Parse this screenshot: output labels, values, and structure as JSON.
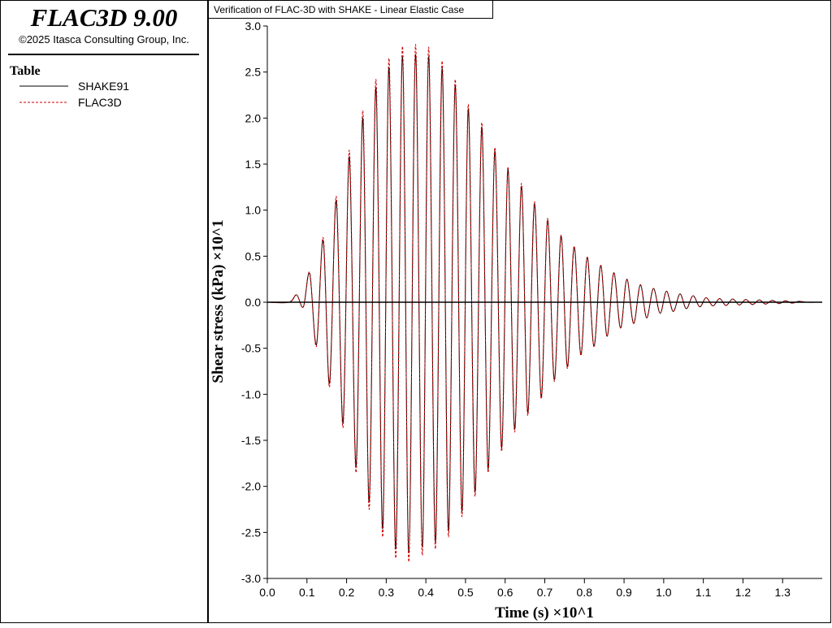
{
  "app": {
    "title": "FLAC3D 9.00",
    "copyright": "©2025 Itasca Consulting Group, Inc.",
    "legend_title": "Table"
  },
  "chart_data": {
    "type": "line",
    "title": "Verification of FLAC-3D with SHAKE - Linear Elastic Case",
    "x_label": "Time (s) ×10^1",
    "y_label": "Shear stress (kPa) ×10^1",
    "x": [
      0,
      0.055,
      0.074,
      0.091,
      0.107,
      0.124,
      0.141,
      0.157,
      0.174,
      0.191,
      0.207,
      0.224,
      0.241,
      0.257,
      0.274,
      0.291,
      0.307,
      0.324,
      0.341,
      0.357,
      0.374,
      0.391,
      0.407,
      0.424,
      0.441,
      0.457,
      0.474,
      0.491,
      0.507,
      0.524,
      0.541,
      0.557,
      0.574,
      0.591,
      0.607,
      0.624,
      0.641,
      0.657,
      0.674,
      0.691,
      0.707,
      0.724,
      0.741,
      0.757,
      0.774,
      0.791,
      0.807,
      0.824,
      0.841,
      0.857,
      0.874,
      0.891,
      0.907,
      0.924,
      0.941,
      0.957,
      0.974,
      0.991,
      1.007,
      1.024,
      1.041,
      1.057,
      1.074,
      1.091,
      1.107,
      1.124,
      1.141,
      1.157,
      1.174,
      1.191,
      1.207,
      1.224,
      1.241,
      1.257,
      1.274,
      1.291,
      1.307,
      1.324,
      1.341,
      1.36,
      1.39
    ],
    "series": [
      {
        "name": "SHAKE91",
        "color": "#000000",
        "style": "solid",
        "values": [
          0,
          0,
          0.08,
          -0.05,
          0.31,
          -0.46,
          0.67,
          -0.88,
          1.1,
          -1.31,
          1.58,
          -1.78,
          2.0,
          -2.17,
          2.33,
          -2.46,
          2.55,
          -2.68,
          2.67,
          -2.72,
          2.69,
          -2.66,
          2.67,
          -2.6,
          2.54,
          -2.48,
          2.36,
          -2.27,
          2.1,
          -2.06,
          1.9,
          -1.81,
          1.64,
          -1.58,
          1.44,
          -1.38,
          1.26,
          -1.2,
          1.07,
          -1.03,
          0.89,
          -0.84,
          0.72,
          -0.7,
          0.6,
          -0.57,
          0.49,
          -0.48,
          0.4,
          -0.37,
          0.32,
          -0.28,
          0.25,
          -0.23,
          0.19,
          -0.17,
          0.15,
          -0.12,
          0.12,
          -0.1,
          0.09,
          -0.07,
          0.07,
          -0.05,
          0.05,
          -0.04,
          0.04,
          -0.035,
          0.035,
          -0.03,
          0.03,
          -0.025,
          0.025,
          -0.02,
          0.02,
          -0.015,
          0.015,
          -0.01,
          0.01,
          0,
          0
        ]
      },
      {
        "name": "FLAC3D",
        "color": "#cc0000",
        "style": "dashed",
        "values": [
          0,
          0,
          0.08,
          -0.05,
          0.32,
          -0.48,
          0.7,
          -0.92,
          1.15,
          -1.36,
          1.65,
          -1.85,
          2.08,
          -2.25,
          2.42,
          -2.55,
          2.65,
          -2.78,
          2.78,
          -2.82,
          2.8,
          -2.75,
          2.77,
          -2.68,
          2.62,
          -2.55,
          2.42,
          -2.33,
          2.15,
          -2.11,
          1.95,
          -1.85,
          1.68,
          -1.62,
          1.47,
          -1.41,
          1.29,
          -1.23,
          1.09,
          -1.05,
          0.91,
          -0.86,
          0.73,
          -0.72,
          0.61,
          -0.58,
          0.49,
          -0.48,
          0.4,
          -0.37,
          0.32,
          -0.28,
          0.25,
          -0.23,
          0.19,
          -0.17,
          0.15,
          -0.12,
          0.12,
          -0.1,
          0.09,
          -0.07,
          0.07,
          -0.05,
          0.05,
          -0.04,
          0.04,
          -0.035,
          0.035,
          -0.03,
          0.03,
          -0.025,
          0.025,
          -0.02,
          0.02,
          -0.015,
          0.015,
          -0.01,
          0.01,
          0,
          0
        ]
      }
    ],
    "xlim": [
      0,
      1.4
    ],
    "ylim": [
      -3,
      3
    ],
    "xticks": [
      {
        "value": 0,
        "label": "0.0"
      },
      0.1,
      0.2,
      0.3,
      0.4,
      0.5,
      0.6,
      0.7,
      0.8,
      0.9,
      {
        "value": 1,
        "label": "1.0"
      },
      1.1,
      1.2,
      1.3
    ],
    "yticks": [
      {
        "value": -3,
        "label": "-3.0"
      },
      -2.5,
      {
        "value": -2,
        "label": "-2.0"
      },
      -1.5,
      {
        "value": -1,
        "label": "-1.0"
      },
      -0.5,
      {
        "value": 0,
        "label": "0.0"
      },
      0.5,
      {
        "value": 1,
        "label": "1.0"
      },
      1.5,
      {
        "value": 2,
        "label": "2.0"
      },
      2.5,
      {
        "value": 3,
        "label": "3.0"
      }
    ],
    "zero_line": true
  }
}
